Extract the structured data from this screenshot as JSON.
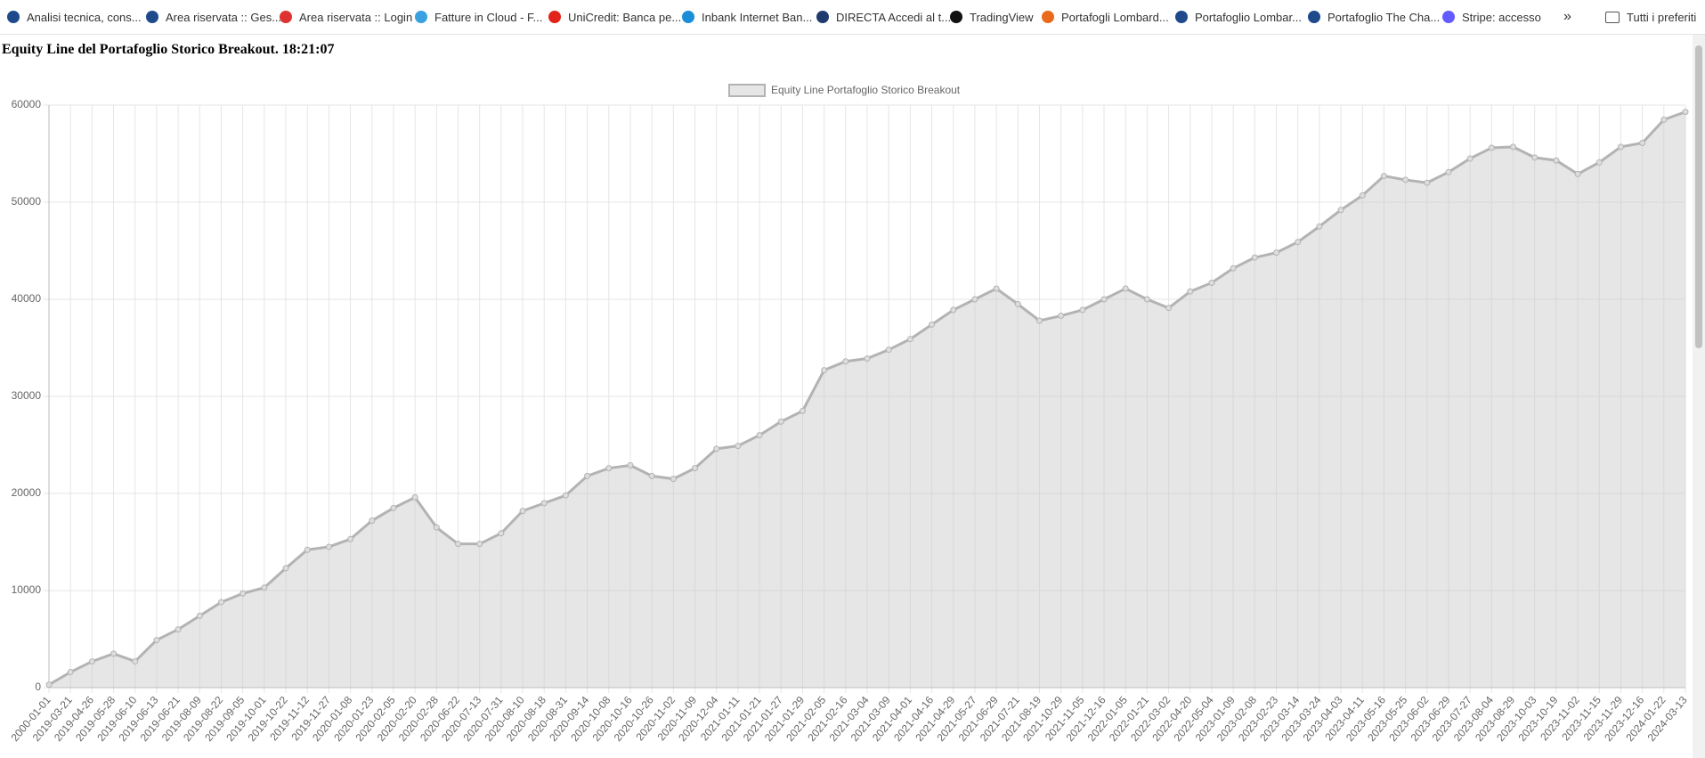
{
  "bookmarks": [
    "Analisi tecnica, cons...",
    "Area riservata :: Ges...",
    "Area riservata :: Login",
    "Fatture in Cloud - F...",
    "UniCredit: Banca pe...",
    "Inbank Internet Ban...",
    "DIRECTA Accedi al t...",
    "TradingView",
    "Portafogli Lombard...",
    "Portafoglio Lombar...",
    "Portafoglio The Cha...",
    "Stripe: accesso",
    "Tutti i preferiti"
  ],
  "heading": "Equity Line del Portafoglio Storico Breakout. 18:21:07",
  "chart_data": {
    "type": "line",
    "categories": [
      "2000-01-01",
      "2019-03-21",
      "2019-04-26",
      "2019-05-28",
      "2019-06-10",
      "2019-06-13",
      "2019-06-21",
      "2019-08-09",
      "2019-08-22",
      "2019-09-05",
      "2019-10-01",
      "2019-10-22",
      "2019-11-12",
      "2019-11-27",
      "2020-01-08",
      "2020-01-23",
      "2020-02-05",
      "2020-02-20",
      "2020-02-28",
      "2020-06-22",
      "2020-07-13",
      "2020-07-31",
      "2020-08-10",
      "2020-08-18",
      "2020-08-31",
      "2020-09-14",
      "2020-10-08",
      "2020-10-16",
      "2020-10-26",
      "2020-11-02",
      "2020-11-09",
      "2020-12-04",
      "2021-01-11",
      "2021-01-21",
      "2021-01-27",
      "2021-01-29",
      "2021-02-05",
      "2021-02-16",
      "2021-03-04",
      "2021-03-09",
      "2021-04-01",
      "2021-04-16",
      "2021-04-29",
      "2021-05-27",
      "2021-06-29",
      "2021-07-21",
      "2021-08-19",
      "2021-10-29",
      "2021-11-05",
      "2021-12-16",
      "2022-01-05",
      "2022-01-21",
      "2022-03-02",
      "2022-04-20",
      "2022-05-04",
      "2023-01-09",
      "2023-02-08",
      "2023-02-23",
      "2023-03-14",
      "2023-03-24",
      "2023-04-03",
      "2023-04-11",
      "2023-05-16",
      "2023-05-25",
      "2023-06-02",
      "2023-06-29",
      "2023-07-27",
      "2023-08-04",
      "2023-08-29",
      "2023-10-03",
      "2023-10-19",
      "2023-11-02",
      "2023-11-15",
      "2023-11-29",
      "2023-12-16",
      "2024-01-22",
      "2024-03-13"
    ],
    "series": [
      {
        "name": "Equity Line Portafoglio Storico Breakout",
        "color": "#b3b3b3",
        "values": [
          300,
          1600,
          2700,
          3500,
          2700,
          4900,
          6000,
          7400,
          8800,
          9700,
          10300,
          12300,
          14200,
          14500,
          15300,
          17200,
          18500,
          19600,
          16500,
          14800,
          14800,
          15900,
          18200,
          19000,
          19800,
          21800,
          22600,
          22900,
          21800,
          21500,
          22600,
          24600,
          24900,
          26000,
          27400,
          28500,
          32700,
          33600,
          33900,
          34800,
          35900,
          37400,
          38900,
          40000,
          41100,
          39500,
          37800,
          38300,
          38900,
          40000,
          41100,
          40000,
          39100,
          40800,
          41700,
          43200,
          44300,
          44800,
          45900,
          47500,
          49200,
          50700,
          52700,
          52300,
          52000,
          53100,
          54500,
          55600,
          55700,
          54600,
          54300,
          52900,
          54100,
          55700,
          56100,
          58500,
          59300
        ]
      }
    ],
    "ylim": [
      0,
      60000
    ],
    "yticks": [
      0,
      10000,
      20000,
      30000,
      40000,
      50000,
      60000
    ],
    "grid": true,
    "legend": "top",
    "fill": true
  }
}
